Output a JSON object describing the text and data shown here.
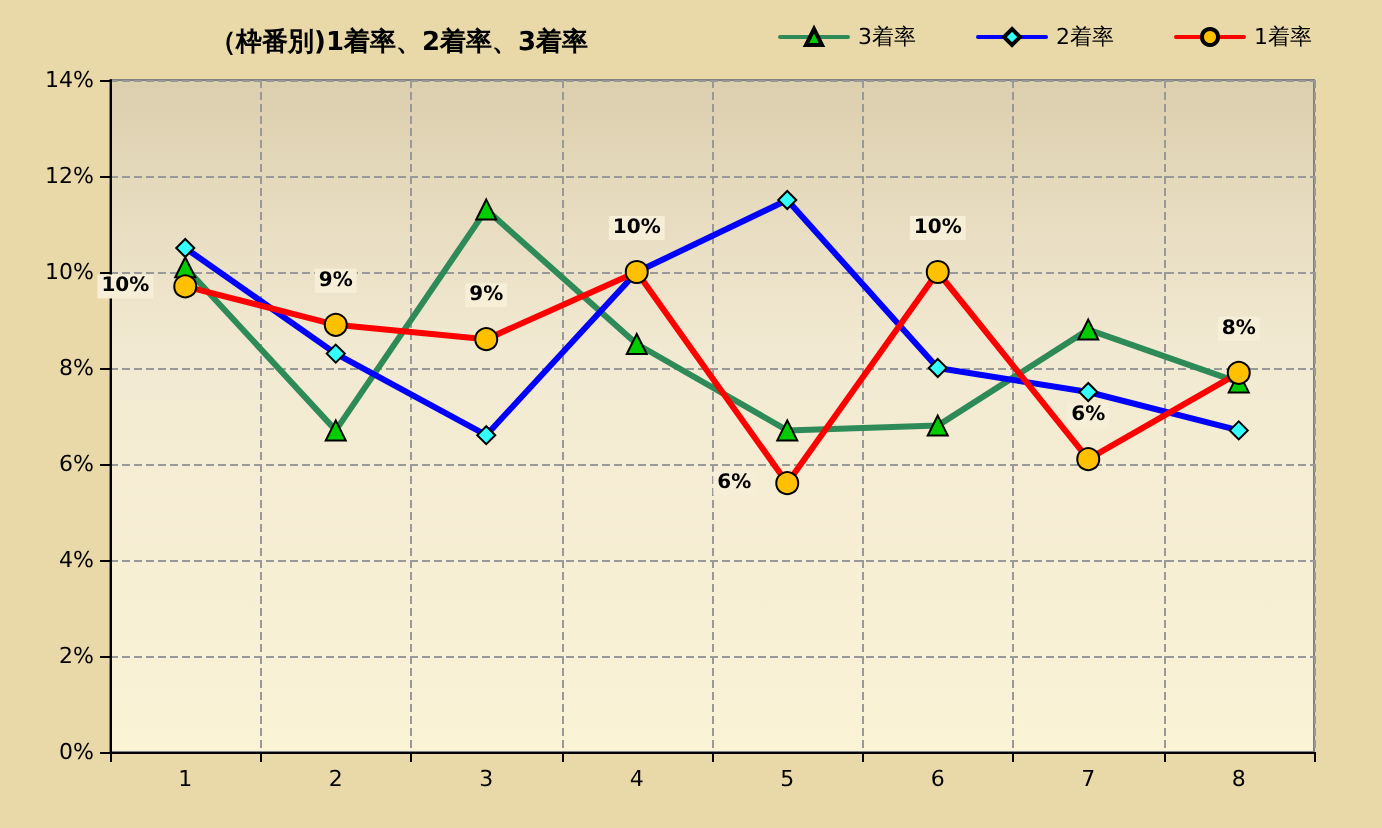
{
  "chart_data": {
    "type": "line",
    "title": "（枠番別)1着率、2着率、3着率",
    "categories": [
      "1",
      "2",
      "3",
      "4",
      "5",
      "6",
      "7",
      "8"
    ],
    "series": [
      {
        "name": "3着率",
        "color": "#2e8b57",
        "marker": "triangle",
        "colors": [
          "#00cc00",
          "#00cc00",
          "#00cc00",
          "#00cc00",
          "#00cc00",
          "#00cc00",
          "#00cc00",
          "#00cc00"
        ],
        "values": [
          10.1,
          6.7,
          11.3,
          8.5,
          6.7,
          6.8,
          8.8,
          7.7
        ]
      },
      {
        "name": "2着率",
        "color": "#0000ff",
        "marker": "diamond",
        "colors": [
          "#33ffff",
          "#33ffff",
          "#33ffff",
          "#33ffff",
          "#33ffff",
          "#33ffff",
          "#33ffff",
          "#33ffff"
        ],
        "values": [
          10.5,
          8.3,
          6.6,
          10.0,
          11.5,
          8.0,
          7.5,
          6.7
        ]
      },
      {
        "name": "1着率",
        "color": "#ff0000",
        "marker": "circle",
        "colors": [
          "#ffc000",
          "#ffc000",
          "#ffc000",
          "#ffc000",
          "#ffc000",
          "#ffc000",
          "#ffc000",
          "#ffc000"
        ],
        "values": [
          9.7,
          8.9,
          8.6,
          10.0,
          5.6,
          10.0,
          6.1,
          7.9
        ],
        "value_labels": [
          "10%",
          "9%",
          "9%",
          "10%",
          "6%",
          "10%",
          "6%",
          "8%"
        ]
      }
    ],
    "ylim": [
      0,
      14
    ],
    "yticks": [
      {
        "value": 0,
        "label": "0%"
      },
      {
        "value": 2,
        "label": "2%"
      },
      {
        "value": 4,
        "label": "4%"
      },
      {
        "value": 6,
        "label": "6%"
      },
      {
        "value": 8,
        "label": "8%"
      },
      {
        "value": 10,
        "label": "10%"
      },
      {
        "value": 12,
        "label": "12%"
      },
      {
        "value": 14,
        "label": "14%"
      }
    ],
    "grid": true,
    "legend": "top right",
    "line_style": "solid"
  }
}
